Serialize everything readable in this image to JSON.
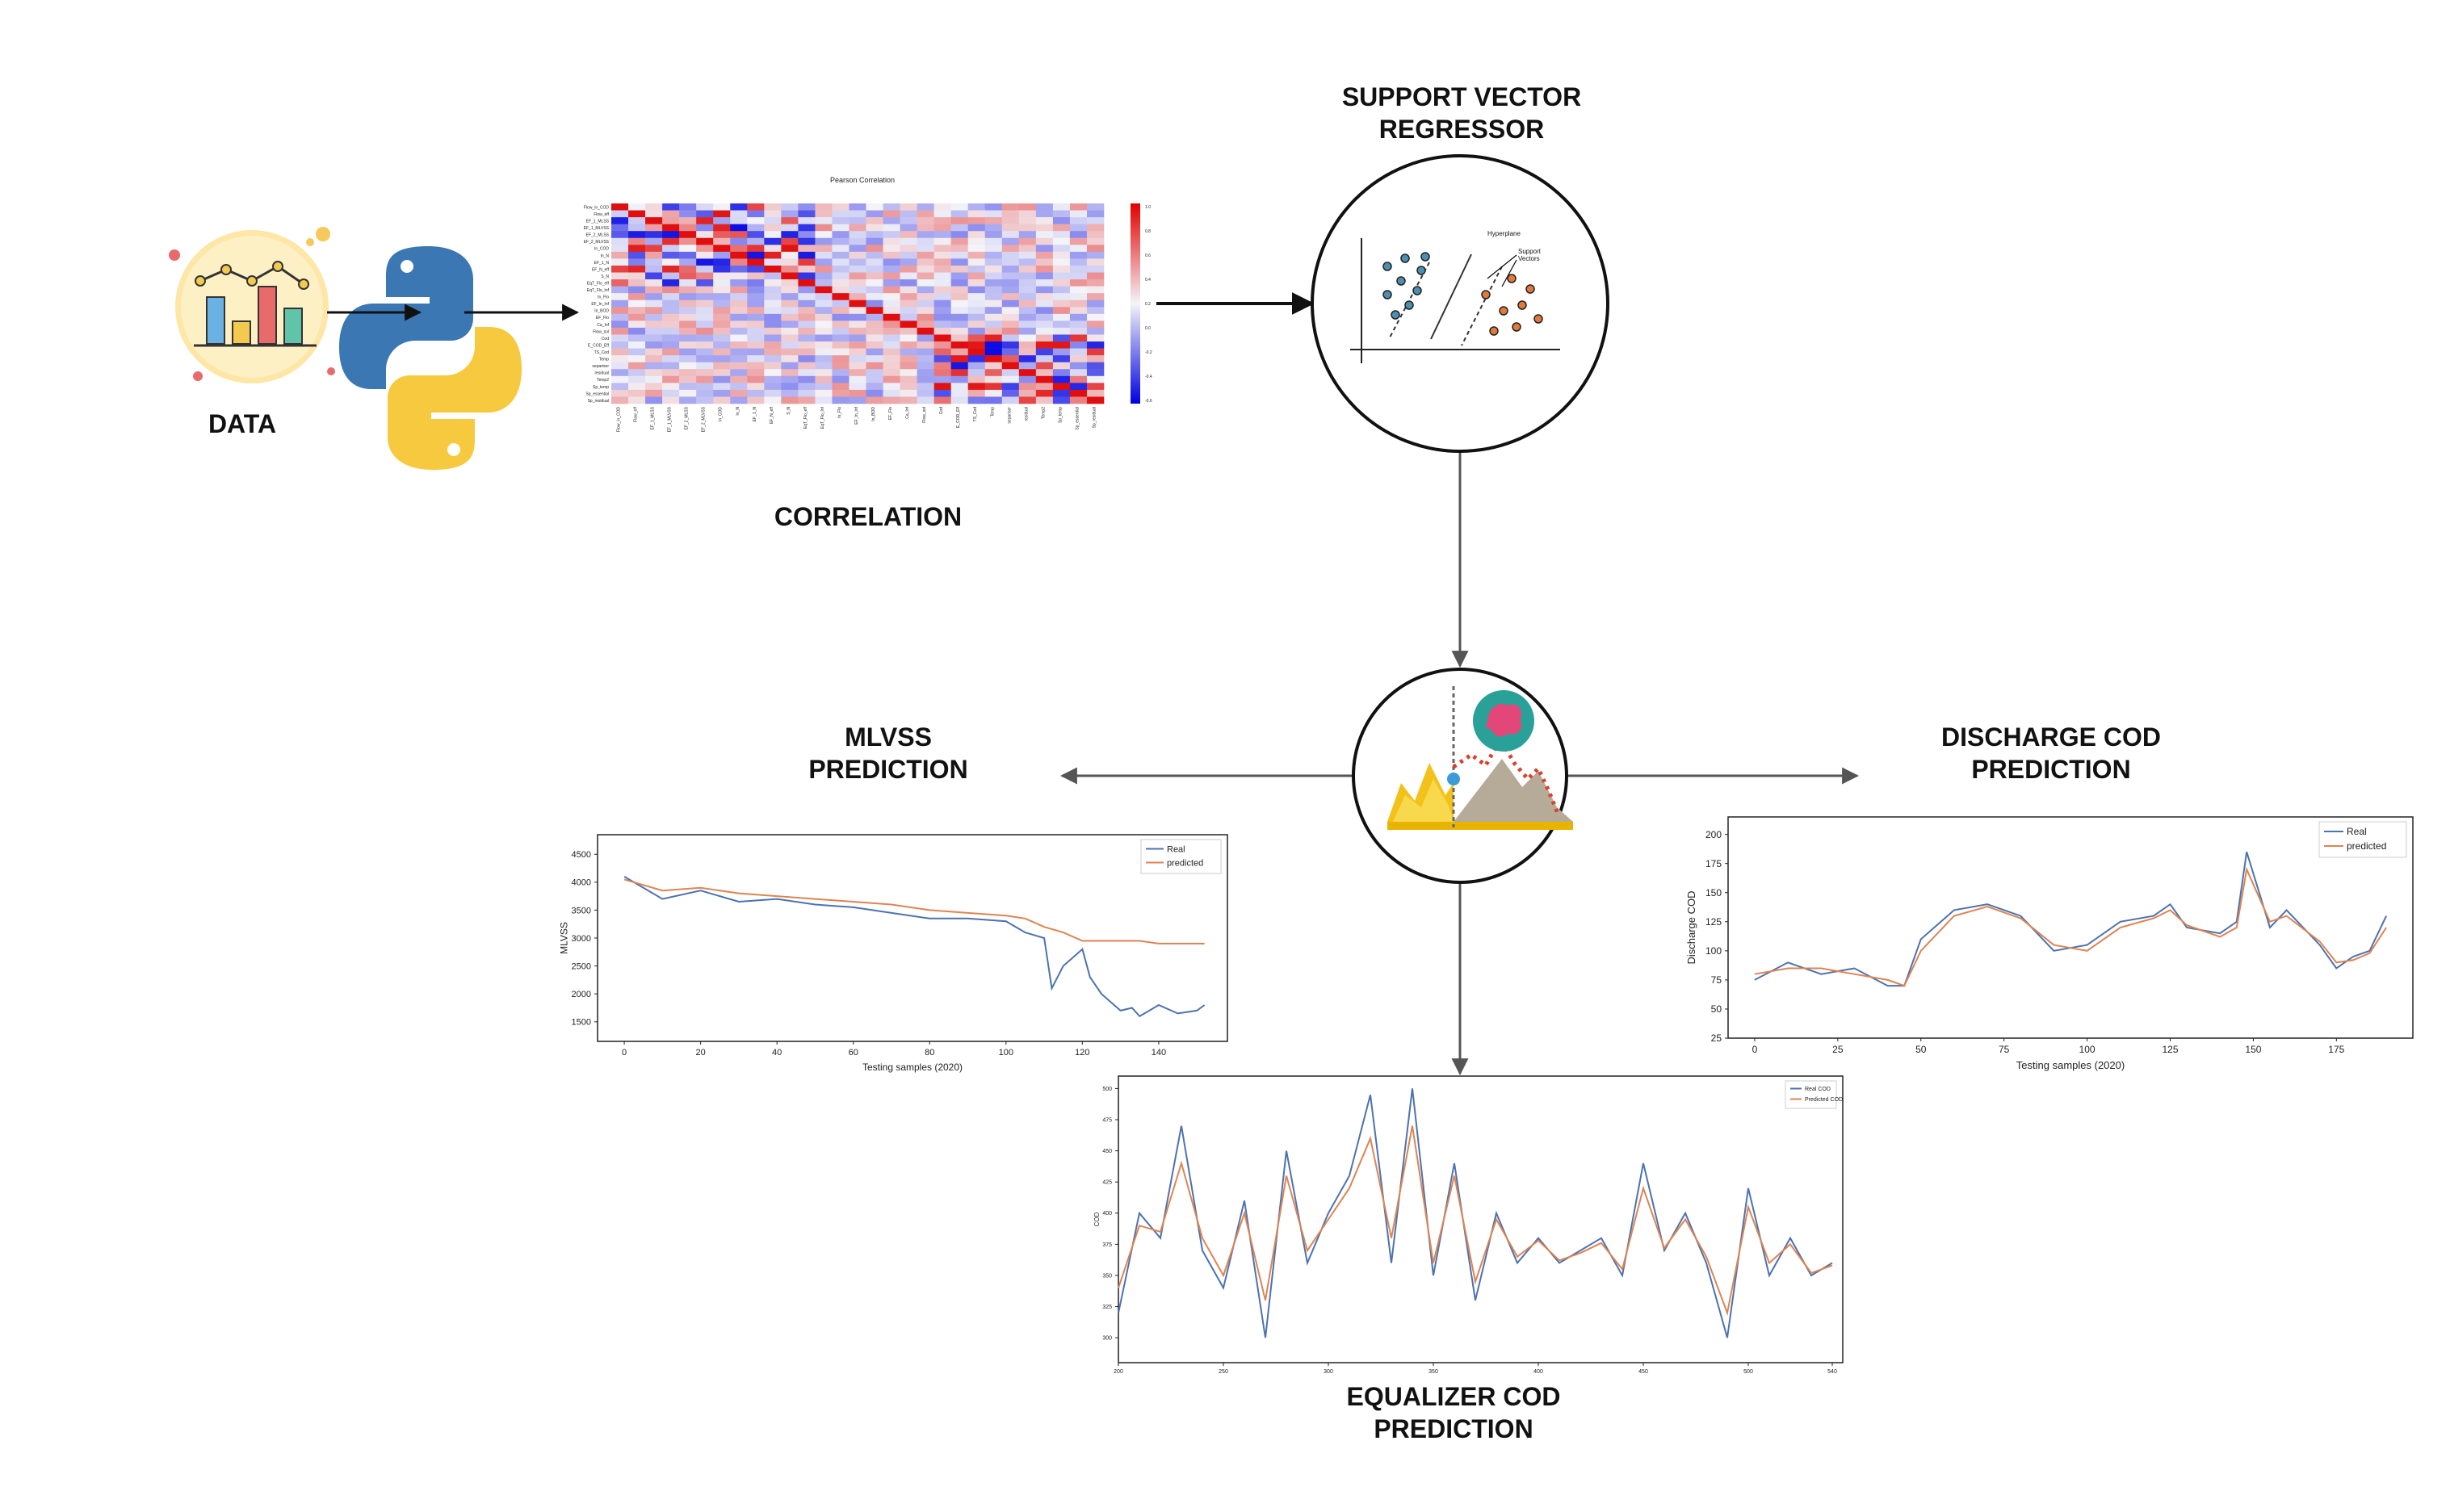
{
  "labels": {
    "data": "DATA",
    "correlation": "CORRELATION",
    "svr": "SUPPORT VECTOR\nREGRESSOR",
    "mlvss": "MLVSS\nPREDICTION",
    "discharge": "DISCHARGE COD\nPREDICTION",
    "equalizer": "EQUALIZER COD\nPREDICTION"
  },
  "svr_icon": {
    "hyperplane": "Hyperplane",
    "support_vectors": "Support\nVectors"
  },
  "heatmap": {
    "title": "Pearson Correlation",
    "rows": [
      "Flow_in_COD",
      "Flow_eff",
      "EF_1_MLSS",
      "EF_1_MLVSS",
      "EF_2_MLSS",
      "EF_2_MLVSS",
      "In_COD",
      "In_N",
      "EF_1_N",
      "EF_N_eff",
      "S_N",
      "EqT_Flo_eff",
      "EqT_Flo_Inf",
      "In_Flo",
      "EF_In_Inf",
      "In_BOD",
      "EF_Flo",
      "Ca_Inf",
      "Flow_sol",
      "Cod",
      "E_COD_Eff",
      "TS_Cod",
      "Temp",
      "separiser",
      "residual",
      "Temp2",
      "Sp_temp",
      "Sp_essential",
      "Sp_residual"
    ],
    "colorbar_ticks": [
      "1.0",
      "0.8",
      "0.6",
      "0.4",
      "0.2",
      "0.0",
      "-0.2",
      "-0.4",
      "-0.6"
    ]
  },
  "chart_data": [
    {
      "type": "line",
      "id": "mlvss",
      "xlabel": "Testing samples (2020)",
      "ylabel": "MLVSS",
      "xlim": [
        -7,
        158
      ],
      "ylim": [
        1150,
        4850
      ],
      "xticks": [
        0,
        20,
        40,
        60,
        80,
        100,
        120,
        140
      ],
      "yticks": [
        1500,
        2000,
        2500,
        3000,
        3500,
        4000,
        4500
      ],
      "legend_position": "top-right",
      "series": [
        {
          "name": "Real",
          "color": "#4c72b0",
          "x": [
            0,
            10,
            20,
            30,
            40,
            50,
            60,
            70,
            80,
            90,
            100,
            105,
            110,
            112,
            115,
            120,
            122,
            125,
            130,
            133,
            135,
            140,
            145,
            150,
            152
          ],
          "values": [
            4100,
            3700,
            3850,
            3650,
            3700,
            3600,
            3550,
            3450,
            3350,
            3350,
            3300,
            3100,
            3000,
            2100,
            2500,
            2800,
            2300,
            2000,
            1700,
            1750,
            1600,
            1800,
            1650,
            1700,
            1800
          ]
        },
        {
          "name": "predicted",
          "color": "#dd8452",
          "x": [
            0,
            10,
            20,
            30,
            40,
            50,
            60,
            70,
            80,
            90,
            100,
            105,
            110,
            115,
            120,
            125,
            130,
            135,
            140,
            145,
            150,
            152
          ],
          "values": [
            4050,
            3850,
            3900,
            3800,
            3750,
            3700,
            3650,
            3600,
            3500,
            3450,
            3400,
            3350,
            3200,
            3100,
            2950,
            2950,
            2950,
            2950,
            2900,
            2900,
            2900,
            2900
          ]
        }
      ]
    },
    {
      "type": "line",
      "id": "discharge",
      "xlabel": "Testing samples (2020)",
      "ylabel": "Discharge COD",
      "xlim": [
        -8,
        198
      ],
      "ylim": [
        25,
        215
      ],
      "xticks": [
        0,
        25,
        50,
        75,
        100,
        125,
        150,
        175
      ],
      "yticks": [
        25,
        50,
        75,
        100,
        125,
        150,
        175,
        200
      ],
      "legend_position": "top-right",
      "series": [
        {
          "name": "Real",
          "color": "#4c72b0",
          "x": [
            0,
            10,
            20,
            30,
            40,
            45,
            50,
            60,
            70,
            80,
            90,
            100,
            110,
            120,
            125,
            130,
            140,
            145,
            148,
            155,
            160,
            170,
            175,
            180,
            185,
            190
          ],
          "values": [
            75,
            90,
            80,
            85,
            70,
            70,
            110,
            135,
            140,
            130,
            100,
            105,
            125,
            130,
            140,
            120,
            115,
            125,
            185,
            120,
            135,
            105,
            85,
            95,
            100,
            130
          ]
        },
        {
          "name": "predicted",
          "color": "#dd8452",
          "x": [
            0,
            10,
            20,
            30,
            40,
            45,
            50,
            60,
            70,
            80,
            90,
            100,
            110,
            120,
            125,
            130,
            140,
            145,
            148,
            155,
            160,
            170,
            175,
            180,
            185,
            190
          ],
          "values": [
            80,
            85,
            85,
            80,
            75,
            70,
            100,
            130,
            138,
            128,
            105,
            100,
            120,
            128,
            135,
            122,
            112,
            120,
            170,
            125,
            130,
            108,
            90,
            92,
            98,
            120
          ]
        }
      ]
    },
    {
      "type": "line",
      "id": "equalizer",
      "xlabel": "",
      "ylabel": "COD",
      "xlim": [
        200,
        545
      ],
      "ylim": [
        280,
        510
      ],
      "xticks": [
        200,
        250,
        300,
        350,
        400,
        450,
        500,
        540
      ],
      "yticks": [
        300,
        325,
        350,
        375,
        400,
        425,
        450,
        475,
        500
      ],
      "legend_position": "top-right",
      "series": [
        {
          "name": "Real COD",
          "color": "#4c72b0",
          "x": [
            200,
            210,
            220,
            230,
            240,
            250,
            260,
            270,
            280,
            290,
            300,
            310,
            320,
            330,
            340,
            350,
            360,
            370,
            380,
            390,
            400,
            410,
            420,
            430,
            440,
            450,
            460,
            470,
            480,
            490,
            500,
            510,
            520,
            530,
            540
          ],
          "values": [
            320,
            400,
            380,
            470,
            370,
            340,
            410,
            300,
            450,
            360,
            400,
            430,
            495,
            360,
            500,
            350,
            440,
            330,
            400,
            360,
            380,
            360,
            370,
            380,
            350,
            440,
            370,
            400,
            360,
            300,
            420,
            350,
            380,
            350,
            360
          ]
        },
        {
          "name": "Predicted COD",
          "color": "#dd8452",
          "x": [
            200,
            210,
            220,
            230,
            240,
            250,
            260,
            270,
            280,
            290,
            300,
            310,
            320,
            330,
            340,
            350,
            360,
            370,
            380,
            390,
            400,
            410,
            420,
            430,
            440,
            450,
            460,
            470,
            480,
            490,
            500,
            510,
            520,
            530,
            540
          ],
          "values": [
            340,
            390,
            385,
            440,
            380,
            350,
            400,
            330,
            430,
            370,
            395,
            420,
            460,
            380,
            470,
            360,
            430,
            345,
            395,
            365,
            378,
            362,
            368,
            376,
            355,
            420,
            372,
            395,
            365,
            320,
            405,
            360,
            375,
            352,
            358
          ]
        }
      ]
    }
  ]
}
